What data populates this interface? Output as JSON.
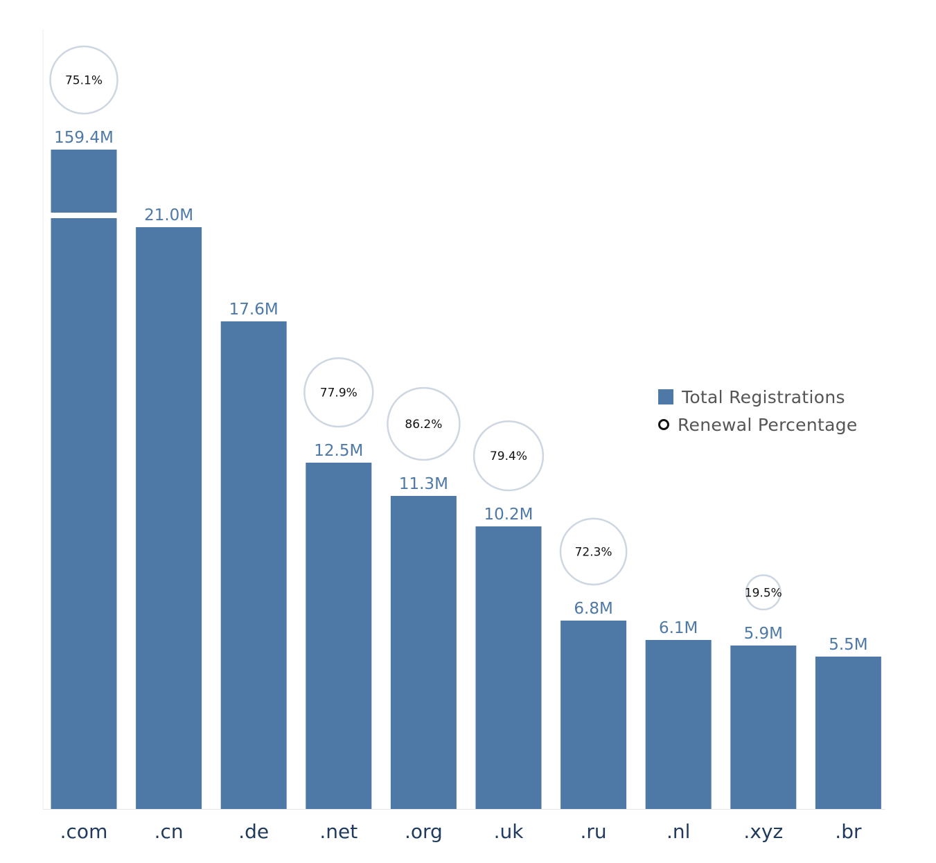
{
  "chart_data": {
    "type": "bar",
    "categories": [
      ".com",
      ".cn",
      ".de",
      ".net",
      ".org",
      ".uk",
      ".ru",
      ".nl",
      ".xyz",
      ".br"
    ],
    "series": [
      {
        "name": "Total Registrations",
        "values": [
          159.4,
          21.0,
          17.6,
          12.5,
          11.3,
          10.2,
          6.8,
          6.1,
          5.9,
          5.5
        ],
        "labels": [
          "159.4M",
          "21.0M",
          "17.6M",
          "12.5M",
          "11.3M",
          "10.2M",
          "6.8M",
          "6.1M",
          "5.9M",
          "5.5M"
        ]
      },
      {
        "name": "Renewal Percentage",
        "values": [
          75.1,
          null,
          null,
          77.9,
          86.2,
          79.4,
          72.3,
          null,
          19.5,
          null
        ],
        "labels": [
          "75.1%",
          "",
          "",
          "77.9%",
          "86.2%",
          "79.4%",
          "72.3%",
          "",
          "19.5%",
          ""
        ]
      }
    ],
    "y_axis": "broken",
    "legend_position": "right",
    "grid": false,
    "colors": {
      "bar": "#4e79a7",
      "bar_label": "#4e79a7",
      "circle_stroke": "#cdd6e1",
      "axis_label": "#1f3a5c",
      "legend_text": "#555555"
    }
  }
}
